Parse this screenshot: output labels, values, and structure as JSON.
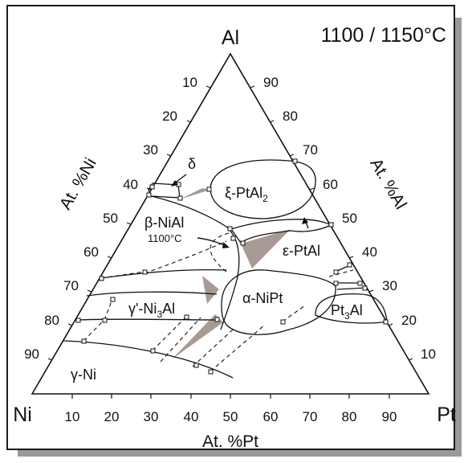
{
  "title": "1100 / 1150°C",
  "corners": {
    "top": "Al",
    "left": "Ni",
    "right": "Pt"
  },
  "axis_titles": {
    "left": "At. %Ni",
    "right": "At. %Al",
    "bottom": "At. %Pt"
  },
  "ticks": {
    "left": [
      "10",
      "20",
      "30",
      "40",
      "50",
      "60",
      "70",
      "80",
      "90"
    ],
    "right": [
      "90",
      "80",
      "70",
      "60",
      "50",
      "40",
      "30",
      "20",
      "10"
    ],
    "bottom": [
      "10",
      "20",
      "30",
      "40",
      "50",
      "60",
      "70",
      "80",
      "90"
    ]
  },
  "phases": {
    "delta": "δ",
    "xi": "ξ-PtAl",
    "xi_sub": "2",
    "beta": "β-NiAl",
    "beta_temp": "1100°C",
    "eps": "ε-PtAl",
    "alpha": "α-NiPt",
    "pt3al": "Pt",
    "pt3al_sub": "3",
    "pt3al_tail": "Al",
    "gprime": "γ'-Ni",
    "gprime_sub": "3",
    "gprime_tail": "Al",
    "gamma": "γ-Ni"
  },
  "colors": {
    "lines": "#111111",
    "wedge": "#a99a94",
    "shadow": "#9a9a9a"
  }
}
